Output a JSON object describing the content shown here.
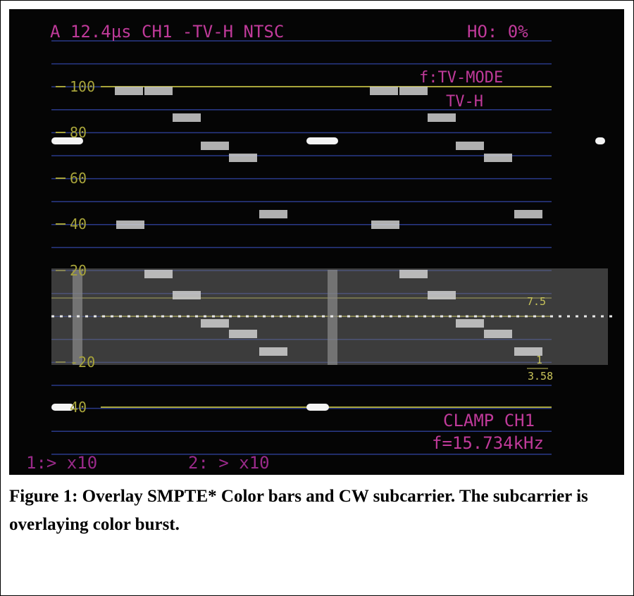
{
  "screen": {
    "header_left": "A 12.4µs CH1 -TV-H NTSC",
    "header_right": "HO:  0%",
    "mode": "f:TV-MODE",
    "mode_sub": "TV-H",
    "scale_labels": [
      "100",
      "80",
      "60",
      "40",
      "20",
      "-20",
      "40"
    ],
    "setup_label": "7.5",
    "ratio_num": "1",
    "ratio_den": "3.58",
    "clamp": "CLAMP CH1",
    "freq": "f=15.734kHz",
    "ch1_gain": "1:> x10",
    "ch2_gain": "2: > x10"
  },
  "caption": "Figure 1: Overlay SMPTE* Color bars and CW subcarrier. The subcarrier is overlaying color burst."
}
